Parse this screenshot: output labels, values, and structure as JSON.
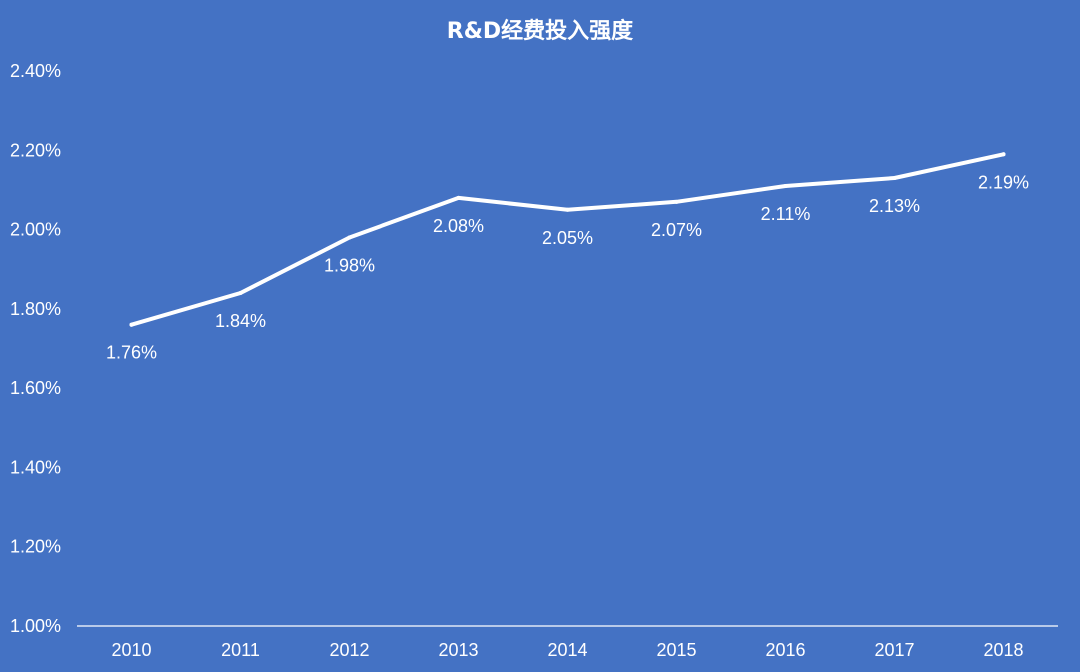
{
  "colors": {
    "background": "#4472C4",
    "line": "#FFFFFF",
    "text": "#FFFFFF",
    "axis": "#FFFFFF"
  },
  "chart_data": {
    "type": "line",
    "title": "R&D经费投入强度",
    "xlabel": "",
    "ylabel": "",
    "categories": [
      "2010",
      "2011",
      "2012",
      "2013",
      "2014",
      "2015",
      "2016",
      "2017",
      "2018"
    ],
    "series": [
      {
        "values": [
          1.76,
          1.84,
          1.98,
          2.08,
          2.05,
          2.07,
          2.11,
          2.13,
          2.19
        ],
        "labels": [
          "1.76%",
          "1.84%",
          "1.98%",
          "2.08%",
          "2.05%",
          "2.07%",
          "2.11%",
          "2.13%",
          "2.19%"
        ]
      }
    ],
    "ylim": [
      1.0,
      2.4
    ],
    "y_ticks": [
      1.0,
      1.2,
      1.4,
      1.6,
      1.8,
      2.0,
      2.2,
      2.4
    ],
    "y_tick_labels": [
      "1.00%",
      "1.20%",
      "1.40%",
      "1.60%",
      "1.80%",
      "2.00%",
      "2.20%",
      "2.40%"
    ],
    "grid": false,
    "legend": "none",
    "data_label_position": "below"
  }
}
